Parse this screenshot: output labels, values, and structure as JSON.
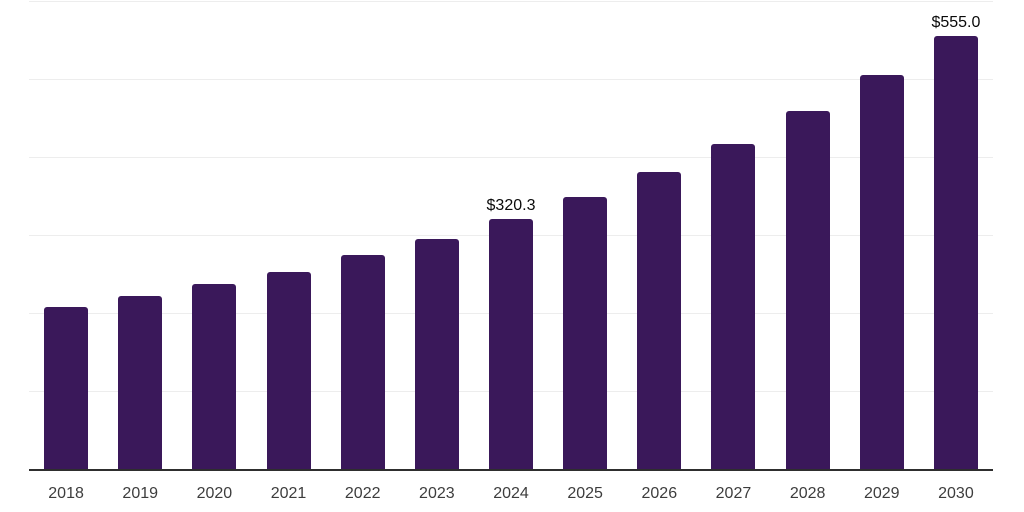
{
  "chart_data": {
    "type": "bar",
    "categories": [
      "2018",
      "2019",
      "2020",
      "2021",
      "2022",
      "2023",
      "2024",
      "2025",
      "2026",
      "2027",
      "2028",
      "2029",
      "2030"
    ],
    "values": [
      207.3,
      222.3,
      237.2,
      253.1,
      274.4,
      295.5,
      320.3,
      348.1,
      380.2,
      416.2,
      458.5,
      505.1,
      555.0
    ],
    "data_labels": {
      "2024": "$320.3",
      "2030": "$555.0"
    },
    "title": "",
    "xlabel": "",
    "ylabel": "",
    "ylim": [
      0,
      600
    ],
    "gridline_step": 100,
    "grid": "horizontal-only",
    "legend": "none",
    "y_tick_labels_visible": false,
    "colors": {
      "bar": "#3a185a",
      "background": "#ffffff",
      "gridline": "#ededed",
      "axis_line": "#2e2e2e",
      "tick_label": "#3d3d3d",
      "value_label": "#0a0a0a"
    }
  }
}
